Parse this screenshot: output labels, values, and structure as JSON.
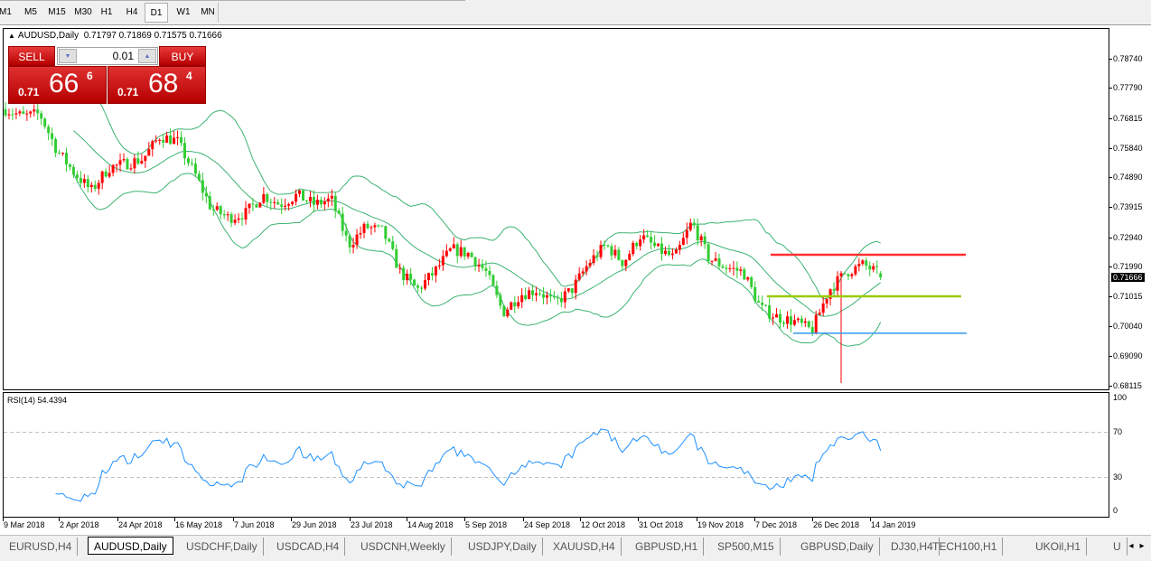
{
  "toolbar": {
    "timeframes": [
      "M1",
      "M5",
      "M15",
      "M30",
      "H1",
      "H4",
      "D1",
      "W1",
      "MN"
    ],
    "active": "D1"
  },
  "chart": {
    "symbol": "AUDUSD,Daily",
    "ohlc": {
      "open": "0.71797",
      "high": "0.71869",
      "low": "0.71575",
      "close": "0.71666"
    },
    "current_price": "0.71666",
    "price_axis": [
      "0.78740",
      "0.77790",
      "0.76815",
      "0.75840",
      "0.74890",
      "0.73915",
      "0.72940",
      "0.71990",
      "0.71015",
      "0.70040",
      "0.69090",
      "0.68115"
    ],
    "date_axis": [
      "9 Mar 2018",
      "2 Apr 2018",
      "24 Apr 2018",
      "16 May 2018",
      "7 Jun 2018",
      "29 Jun 2018",
      "23 Jul 2018",
      "14 Aug 2018",
      "5 Sep 2018",
      "24 Sep 2018",
      "12 Oct 2018",
      "31 Oct 2018",
      "19 Nov 2018",
      "7 Dec 2018",
      "26 Dec 2018",
      "14 Jan 2019"
    ],
    "approx_closes": [
      0.7713,
      0.7689,
      0.7698,
      0.758,
      0.7507,
      0.7448,
      0.7522,
      0.7536,
      0.7551,
      0.7625,
      0.761,
      0.7507,
      0.739,
      0.736,
      0.7375,
      0.7434,
      0.7404,
      0.7434,
      0.7404,
      0.7419,
      0.7272,
      0.7331,
      0.7316,
      0.7184,
      0.7126,
      0.7184,
      0.7258,
      0.7243,
      0.7184,
      0.7052,
      0.7111,
      0.7126,
      0.7082,
      0.7126,
      0.7214,
      0.7272,
      0.7214,
      0.7302,
      0.7258,
      0.7228,
      0.7346,
      0.7228,
      0.7199,
      0.7184,
      0.7067,
      0.7037,
      0.7023,
      0.6993,
      0.7126,
      0.7184,
      0.7208,
      0.7175
    ],
    "horizontal_lines": [
      {
        "price": 0.724,
        "color": "#ff3030"
      },
      {
        "price": 0.7105,
        "color": "#99cc00"
      },
      {
        "price": 0.6985,
        "color": "#3399ee"
      }
    ],
    "up_color": "#ff0000",
    "down_color": "#32cd32",
    "band_color": "#3cb371",
    "indicators": "Bollinger Bands"
  },
  "trade": {
    "sell_label": "SELL",
    "buy_label": "BUY",
    "lot": "0.01",
    "bid": {
      "prefix": "0.71",
      "big": "66",
      "sup": "6"
    },
    "ask": {
      "prefix": "0.71",
      "big": "68",
      "sup": "4"
    }
  },
  "rsi": {
    "label": "RSI(14) 54.4394",
    "axis": [
      "100",
      "70",
      "30",
      "0"
    ],
    "levels": [
      70,
      30
    ],
    "line_color": "#1e90ff"
  },
  "tabs": {
    "items": [
      "EURUSD,H4",
      "AUDUSD,Daily",
      "USDCHF,Daily",
      "USDCAD,H4",
      "USDCNH,Weekly",
      "USDJPY,Daily",
      "XAUUSD,H4",
      "GBPUSD,H1",
      "SP500,M15",
      "GBPUSD,Daily",
      "DJ30,H4",
      "TECH100,H1",
      "UKOil,H1",
      "U"
    ],
    "active": 1,
    "scroll_left": "◂",
    "scroll_right": "▸"
  }
}
